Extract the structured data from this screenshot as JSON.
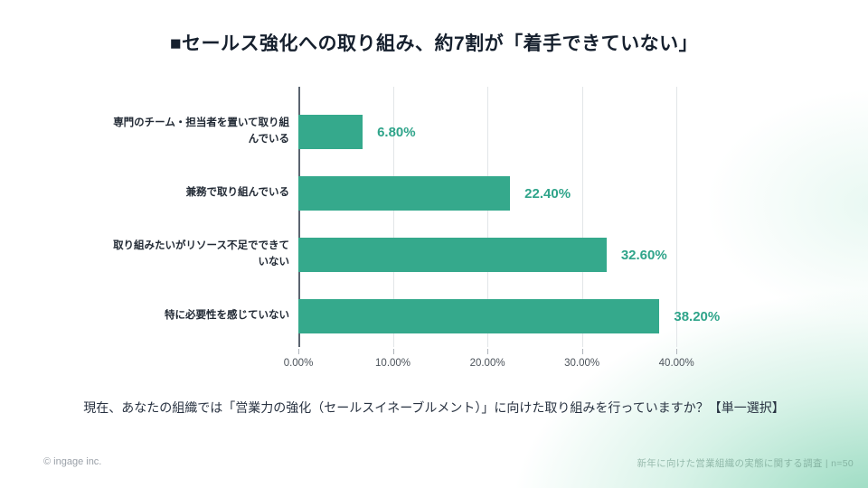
{
  "slide": {
    "title": "■セールス強化への取り組み、約7割が「着手できていない」",
    "question": "現在、あなたの組織では「営業力の強化（セールスイネーブルメント）」に向けた取り組みを行っていますか？【単一選択】",
    "footer_left": "© ingage inc.",
    "footer_right": "新年に向けた営業組織の実態に関する調査 | n=50"
  },
  "chart_data": {
    "type": "bar",
    "orientation": "horizontal",
    "title": "",
    "categories": [
      "専門のチーム・担当者を置いて取り組んでいる",
      "兼務で取り組んでいる",
      "取り組みたいがリソース不足でできていない",
      "特に必要性を感じていない"
    ],
    "values": [
      6.8,
      22.4,
      32.6,
      38.2
    ],
    "value_labels": [
      "6.80%",
      "22.40%",
      "32.60%",
      "38.20%"
    ],
    "x_ticks": [
      "0.00%",
      "10.00%",
      "20.00%",
      "30.00%",
      "40.00%"
    ],
    "x_tick_values": [
      0,
      10,
      20,
      30,
      40
    ],
    "xlim": [
      0,
      44
    ],
    "grid": true,
    "legend": false,
    "bar_color": "#35a98c",
    "value_label_color": "#2fa48a"
  }
}
